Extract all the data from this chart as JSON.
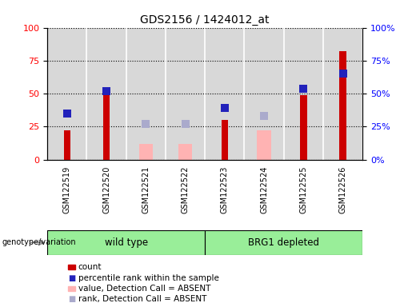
{
  "title": "GDS2156 / 1424012_at",
  "samples": [
    "GSM122519",
    "GSM122520",
    "GSM122521",
    "GSM122522",
    "GSM122523",
    "GSM122524",
    "GSM122525",
    "GSM122526"
  ],
  "red_bars": [
    22,
    49,
    0,
    0,
    30,
    0,
    49,
    82
  ],
  "blue_squares": [
    35,
    52,
    0,
    0,
    39,
    0,
    54,
    65
  ],
  "pink_bars": [
    0,
    0,
    12,
    12,
    0,
    22,
    0,
    0
  ],
  "lightblue_squares": [
    0,
    0,
    27,
    27,
    0,
    33,
    0,
    0
  ],
  "red_bar_color": "#cc0000",
  "blue_sq_color": "#2222bb",
  "pink_bar_color": "#ffb3b3",
  "lightblue_sq_color": "#aaaacc",
  "wild_type_label": "wild type",
  "brg1_label": "BRG1 depleted",
  "genotype_label": "genotype/variation",
  "group_color": "#99ee99",
  "bg_color": "#d8d8d8",
  "ylim": [
    0,
    100
  ],
  "yticks": [
    0,
    25,
    50,
    75,
    100
  ],
  "legend_items": [
    {
      "label": "count",
      "color": "#cc0000",
      "type": "bar"
    },
    {
      "label": "percentile rank within the sample",
      "color": "#2222bb",
      "type": "square"
    },
    {
      "label": "value, Detection Call = ABSENT",
      "color": "#ffb3b3",
      "type": "bar"
    },
    {
      "label": "rank, Detection Call = ABSENT",
      "color": "#aaaacc",
      "type": "square"
    }
  ]
}
